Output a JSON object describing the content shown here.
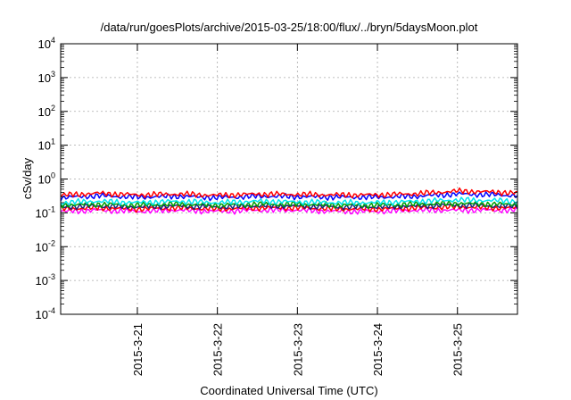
{
  "chart_data": {
    "type": "line",
    "title": "/data/run/goesPlots/archive/2015-03-25/18:00/flux/../bryn/5daysMoon.plot",
    "xlabel": "Coordinated Universal Time (UTC)",
    "ylabel": "cSv/day",
    "yscale": "log",
    "ylim": [
      0.0001,
      10000
    ],
    "y_ticks": [
      {
        "base": "10",
        "exp": "-4",
        "value": 0.0001
      },
      {
        "base": "10",
        "exp": "-3",
        "value": 0.001
      },
      {
        "base": "10",
        "exp": "-2",
        "value": 0.01
      },
      {
        "base": "10",
        "exp": "-1",
        "value": 0.1
      },
      {
        "base": "10",
        "exp": "0",
        "value": 1
      },
      {
        "base": "10",
        "exp": "1",
        "value": 10
      },
      {
        "base": "10",
        "exp": "2",
        "value": 100
      },
      {
        "base": "10",
        "exp": "3",
        "value": 1000
      },
      {
        "base": "10",
        "exp": "4",
        "value": 10000
      }
    ],
    "x_ticks": [
      "2015-3-21",
      "2015-3-22",
      "2015-3-23",
      "2015-3-24",
      "2015-3-25"
    ],
    "xlim": [
      "2015-03-20T01:00",
      "2015-03-25T18:00"
    ],
    "grid": true,
    "legend": "none",
    "series": [
      {
        "color": "#ff00ff",
        "x": [
          "2015-03-20T01:00",
          "2015-03-20T12:00",
          "2015-03-21T00:00",
          "2015-03-21T12:00",
          "2015-03-22T00:00",
          "2015-03-22T12:00",
          "2015-03-23T00:00",
          "2015-03-23T12:00",
          "2015-03-24T00:00",
          "2015-03-24T12:00",
          "2015-03-25T00:00",
          "2015-03-25T12:00",
          "2015-03-25T18:00"
        ],
        "y": [
          0.11,
          0.12,
          0.11,
          0.12,
          0.11,
          0.12,
          0.12,
          0.11,
          0.11,
          0.12,
          0.12,
          0.12,
          0.12
        ]
      },
      {
        "color": "#ff0000",
        "x": [
          "2015-03-20T01:00",
          "2015-03-20T12:00",
          "2015-03-21T00:00",
          "2015-03-21T12:00",
          "2015-03-22T00:00",
          "2015-03-22T12:00",
          "2015-03-23T00:00",
          "2015-03-23T12:00",
          "2015-03-24T00:00",
          "2015-03-24T12:00",
          "2015-03-25T00:00",
          "2015-03-25T12:00",
          "2015-03-25T18:00"
        ],
        "y": [
          0.13,
          0.14,
          0.13,
          0.14,
          0.13,
          0.14,
          0.14,
          0.13,
          0.13,
          0.14,
          0.15,
          0.14,
          0.14
        ]
      },
      {
        "color": "#1a237e",
        "x": [
          "2015-03-20T01:00",
          "2015-03-20T12:00",
          "2015-03-21T00:00",
          "2015-03-21T12:00",
          "2015-03-22T00:00",
          "2015-03-22T12:00",
          "2015-03-23T00:00",
          "2015-03-23T12:00",
          "2015-03-24T00:00",
          "2015-03-24T12:00",
          "2015-03-25T00:00",
          "2015-03-25T12:00",
          "2015-03-25T18:00"
        ],
        "y": [
          0.15,
          0.16,
          0.15,
          0.16,
          0.15,
          0.16,
          0.16,
          0.15,
          0.15,
          0.16,
          0.17,
          0.16,
          0.16
        ]
      },
      {
        "color": "#00a000",
        "x": [
          "2015-03-20T01:00",
          "2015-03-20T12:00",
          "2015-03-21T00:00",
          "2015-03-21T12:00",
          "2015-03-22T00:00",
          "2015-03-22T12:00",
          "2015-03-23T00:00",
          "2015-03-23T12:00",
          "2015-03-24T00:00",
          "2015-03-24T12:00",
          "2015-03-25T00:00",
          "2015-03-25T12:00",
          "2015-03-25T18:00"
        ],
        "y": [
          0.17,
          0.18,
          0.17,
          0.18,
          0.17,
          0.18,
          0.18,
          0.17,
          0.17,
          0.18,
          0.19,
          0.18,
          0.18
        ]
      },
      {
        "color": "#00e5ee",
        "x": [
          "2015-03-20T01:00",
          "2015-03-20T12:00",
          "2015-03-21T00:00",
          "2015-03-21T12:00",
          "2015-03-22T00:00",
          "2015-03-22T12:00",
          "2015-03-23T00:00",
          "2015-03-23T12:00",
          "2015-03-24T00:00",
          "2015-03-24T12:00",
          "2015-03-25T00:00",
          "2015-03-25T12:00",
          "2015-03-25T18:00"
        ],
        "y": [
          0.2,
          0.22,
          0.2,
          0.22,
          0.2,
          0.22,
          0.21,
          0.2,
          0.2,
          0.22,
          0.24,
          0.23,
          0.22
        ]
      },
      {
        "color": "#0000ff",
        "x": [
          "2015-03-20T01:00",
          "2015-03-20T12:00",
          "2015-03-21T00:00",
          "2015-03-21T12:00",
          "2015-03-22T00:00",
          "2015-03-22T12:00",
          "2015-03-23T00:00",
          "2015-03-23T12:00",
          "2015-03-24T00:00",
          "2015-03-24T12:00",
          "2015-03-25T00:00",
          "2015-03-25T12:00",
          "2015-03-25T18:00"
        ],
        "y": [
          0.28,
          0.32,
          0.29,
          0.31,
          0.28,
          0.31,
          0.3,
          0.29,
          0.29,
          0.31,
          0.36,
          0.34,
          0.32
        ]
      },
      {
        "color": "#ff0000",
        "x": [
          "2015-03-20T01:00",
          "2015-03-20T12:00",
          "2015-03-21T00:00",
          "2015-03-21T12:00",
          "2015-03-22T00:00",
          "2015-03-22T12:00",
          "2015-03-23T00:00",
          "2015-03-23T12:00",
          "2015-03-24T00:00",
          "2015-03-24T12:00",
          "2015-03-25T00:00",
          "2015-03-25T12:00",
          "2015-03-25T18:00"
        ],
        "y": [
          0.33,
          0.38,
          0.34,
          0.36,
          0.33,
          0.36,
          0.35,
          0.34,
          0.34,
          0.37,
          0.44,
          0.41,
          0.38
        ]
      }
    ]
  }
}
